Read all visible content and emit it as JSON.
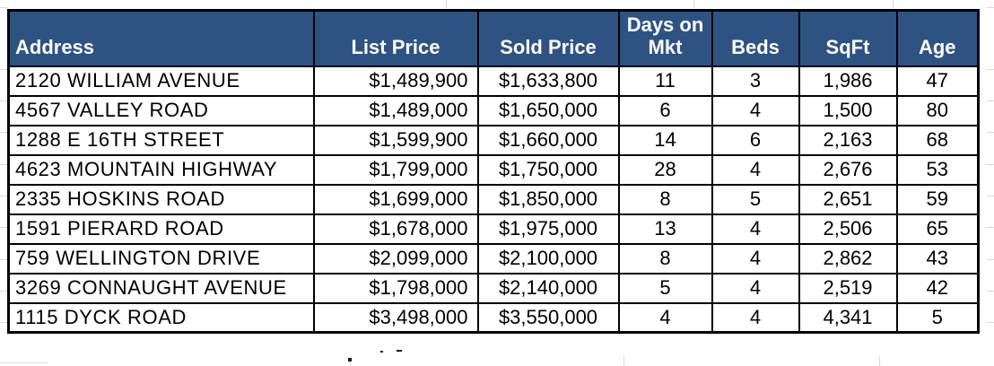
{
  "table": {
    "columns": [
      {
        "key": "address",
        "label": "Address"
      },
      {
        "key": "list-price",
        "label": "List Price"
      },
      {
        "key": "sold-price",
        "label": "Sold Price"
      },
      {
        "key": "days-on-mkt",
        "label": "Days on\nMkt"
      },
      {
        "key": "beds",
        "label": "Beds"
      },
      {
        "key": "sqft",
        "label": "SqFt"
      },
      {
        "key": "age",
        "label": "Age"
      }
    ],
    "rows": [
      [
        "2120 WILLIAM AVENUE",
        "$1,489,900",
        "$1,633,800",
        "11",
        "3",
        "1,986",
        "47"
      ],
      [
        "4567 VALLEY ROAD",
        "$1,489,000",
        "$1,650,000",
        "6",
        "4",
        "1,500",
        "80"
      ],
      [
        "1288 E 16TH STREET",
        "$1,599,900",
        "$1,660,000",
        "14",
        "6",
        "2,163",
        "68"
      ],
      [
        "4623 MOUNTAIN HIGHWAY",
        "$1,799,000",
        "$1,750,000",
        "28",
        "4",
        "2,676",
        "53"
      ],
      [
        "2335 HOSKINS ROAD",
        "$1,699,000",
        "$1,850,000",
        "8",
        "5",
        "2,651",
        "59"
      ],
      [
        "1591 PIERARD ROAD",
        "$1,678,000",
        "$1,975,000",
        "13",
        "4",
        "2,506",
        "65"
      ],
      [
        "759 WELLINGTON DRIVE",
        "$2,099,000",
        "$2,100,000",
        "8",
        "4",
        "2,862",
        "43"
      ],
      [
        "3269 CONNAUGHT AVENUE",
        "$1,798,000",
        "$2,140,000",
        "5",
        "4",
        "2,519",
        "42"
      ],
      [
        "1115 DYCK ROAD",
        "$3,498,000",
        "$3,550,000",
        "4",
        "4",
        "4,341",
        "5"
      ]
    ]
  },
  "colors": {
    "header_bg": "#2E5383",
    "header_text": "#FFFFFF",
    "border": "#000000",
    "gridline": "#D9D9D9"
  }
}
